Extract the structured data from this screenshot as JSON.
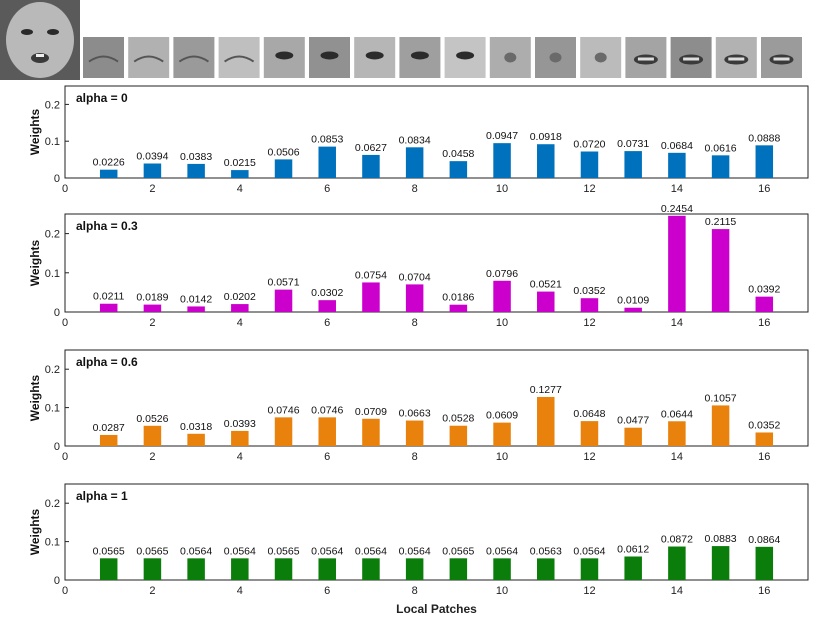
{
  "patch_strip": {
    "full_face": {
      "icon": "full-face-thumbnail"
    },
    "patches": [
      {
        "icon": "patch-1-thumbnail"
      },
      {
        "icon": "patch-2-thumbnail"
      },
      {
        "icon": "patch-3-thumbnail"
      },
      {
        "icon": "patch-4-thumbnail"
      },
      {
        "icon": "patch-5-thumbnail"
      },
      {
        "icon": "patch-6-thumbnail"
      },
      {
        "icon": "patch-7-thumbnail"
      },
      {
        "icon": "patch-8-thumbnail"
      },
      {
        "icon": "patch-9-thumbnail"
      },
      {
        "icon": "patch-10-thumbnail"
      },
      {
        "icon": "patch-11-thumbnail"
      },
      {
        "icon": "patch-12-thumbnail"
      },
      {
        "icon": "patch-13-thumbnail"
      },
      {
        "icon": "patch-14-thumbnail"
      },
      {
        "icon": "patch-15-thumbnail"
      },
      {
        "icon": "patch-16-thumbnail"
      }
    ]
  },
  "chart_data": [
    {
      "type": "bar",
      "title": "alpha = 0",
      "ylabel": "Weights",
      "xlabel": "",
      "color": "#0072bd",
      "x": [
        1,
        2,
        3,
        4,
        5,
        6,
        7,
        8,
        9,
        10,
        11,
        12,
        13,
        14,
        15,
        16
      ],
      "values": [
        0.0226,
        0.0394,
        0.0383,
        0.0215,
        0.0506,
        0.0853,
        0.0627,
        0.0834,
        0.0458,
        0.0947,
        0.0918,
        0.072,
        0.0731,
        0.0684,
        0.0616,
        0.0888
      ],
      "labels": [
        "0.0226",
        "0.0394",
        "0.0383",
        "0.0215",
        "0.0506",
        "0.0853",
        "0.0627",
        "0.0834",
        "0.0458",
        "0.0947",
        "0.0918",
        "0.0720",
        "0.0731",
        "0.0684",
        "0.0616",
        "0.0888"
      ],
      "xlim": [
        0,
        17
      ],
      "xticks": [
        0,
        2,
        4,
        6,
        8,
        10,
        12,
        14,
        16
      ],
      "xticklabels": [
        "0",
        "2",
        "4",
        "6",
        "8",
        "10",
        "12",
        "14",
        "16"
      ],
      "ylim": [
        0,
        0.25
      ],
      "yticks": [
        0,
        0.1,
        0.2
      ],
      "yticklabels": [
        "0",
        "0.1",
        "0.2"
      ]
    },
    {
      "type": "bar",
      "title": "alpha = 0.3",
      "ylabel": "Weights",
      "xlabel": "",
      "color": "#cc00cc",
      "x": [
        1,
        2,
        3,
        4,
        5,
        6,
        7,
        8,
        9,
        10,
        11,
        12,
        13,
        14,
        15,
        16
      ],
      "values": [
        0.0211,
        0.0189,
        0.0142,
        0.0202,
        0.0571,
        0.0302,
        0.0754,
        0.0704,
        0.0186,
        0.0796,
        0.0521,
        0.0352,
        0.0109,
        0.2454,
        0.2115,
        0.0392
      ],
      "labels": [
        "0.0211",
        "0.0189",
        "0.0142",
        "0.0202",
        "0.0571",
        "0.0302",
        "0.0754",
        "0.0704",
        "0.0186",
        "0.0796",
        "0.0521",
        "0.0352",
        "0.0109",
        "0.2454",
        "0.2115",
        "0.0392"
      ],
      "xlim": [
        0,
        17
      ],
      "xticks": [
        0,
        2,
        4,
        6,
        8,
        10,
        12,
        14,
        16
      ],
      "xticklabels": [
        "0",
        "2",
        "4",
        "6",
        "8",
        "10",
        "12",
        "14",
        "16"
      ],
      "ylim": [
        0,
        0.25
      ],
      "yticks": [
        0,
        0.1,
        0.2
      ],
      "yticklabels": [
        "0",
        "0.1",
        "0.2"
      ]
    },
    {
      "type": "bar",
      "title": "alpha = 0.6",
      "ylabel": "Weights",
      "xlabel": "",
      "color": "#e8820c",
      "x": [
        1,
        2,
        3,
        4,
        5,
        6,
        7,
        8,
        9,
        10,
        11,
        12,
        13,
        14,
        15,
        16
      ],
      "values": [
        0.0287,
        0.0526,
        0.0318,
        0.0393,
        0.0746,
        0.0746,
        0.0709,
        0.0663,
        0.0528,
        0.0609,
        0.1277,
        0.0648,
        0.0477,
        0.0644,
        0.1057,
        0.0352
      ],
      "labels": [
        "0.0287",
        "0.0526",
        "0.0318",
        "0.0393",
        "0.0746",
        "0.0746",
        "0.0709",
        "0.0663",
        "0.0528",
        "0.0609",
        "0.1277",
        "0.0648",
        "0.0477",
        "0.0644",
        "0.1057",
        "0.0352"
      ],
      "xlim": [
        0,
        17
      ],
      "xticks": [
        0,
        2,
        4,
        6,
        8,
        10,
        12,
        14,
        16
      ],
      "xticklabels": [
        "0",
        "2",
        "4",
        "6",
        "8",
        "10",
        "12",
        "14",
        "16"
      ],
      "ylim": [
        0,
        0.25
      ],
      "yticks": [
        0,
        0.1,
        0.2
      ],
      "yticklabels": [
        "0",
        "0.1",
        "0.2"
      ]
    },
    {
      "type": "bar",
      "title": "alpha = 1",
      "ylabel": "Weights",
      "xlabel": "Local Patches",
      "color": "#0a7d0a",
      "x": [
        1,
        2,
        3,
        4,
        5,
        6,
        7,
        8,
        9,
        10,
        11,
        12,
        13,
        14,
        15,
        16
      ],
      "values": [
        0.0565,
        0.0565,
        0.0564,
        0.0564,
        0.0565,
        0.0564,
        0.0564,
        0.0564,
        0.0565,
        0.0564,
        0.0563,
        0.0564,
        0.0612,
        0.0872,
        0.0883,
        0.0864
      ],
      "labels": [
        "0.0565",
        "0.0565",
        "0.0564",
        "0.0564",
        "0.0565",
        "0.0564",
        "0.0564",
        "0.0564",
        "0.0565",
        "0.0564",
        "0.0563",
        "0.0564",
        "0.0612",
        "0.0872",
        "0.0883",
        "0.0864"
      ],
      "xlim": [
        0,
        17
      ],
      "xticks": [
        0,
        2,
        4,
        6,
        8,
        10,
        12,
        14,
        16
      ],
      "xticklabels": [
        "0",
        "2",
        "4",
        "6",
        "8",
        "10",
        "12",
        "14",
        "16"
      ],
      "ylim": [
        0,
        0.25
      ],
      "yticks": [
        0,
        0.1,
        0.2
      ],
      "yticklabels": [
        "0",
        "0.1",
        "0.2"
      ]
    }
  ]
}
